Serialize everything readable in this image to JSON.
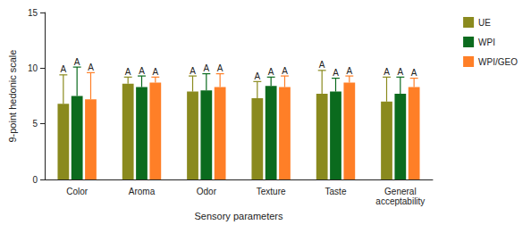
{
  "chart_data": {
    "type": "bar",
    "x_label": "Sensory parameters",
    "y_label": "9-point hedonic scale",
    "categories": [
      "Color",
      "Aroma",
      "Odor",
      "Texture",
      "Taste",
      "General\nacceptability"
    ],
    "series": [
      {
        "name": "UE",
        "color": "#8a8a1e",
        "values": [
          6.8,
          8.6,
          7.9,
          7.3,
          7.7,
          7.0
        ],
        "error": [
          2.6,
          0.6,
          1.4,
          1.5,
          2.1,
          2.2
        ],
        "letters": [
          "A",
          "A",
          "A",
          "A",
          "A",
          "A"
        ]
      },
      {
        "name": "WPI",
        "color": "#0b6b1e",
        "values": [
          7.5,
          8.3,
          8.0,
          8.4,
          7.9,
          7.7
        ],
        "error": [
          2.6,
          1.0,
          1.5,
          0.8,
          1.2,
          1.5
        ],
        "letters": [
          "A",
          "A",
          "A",
          "A",
          "A",
          "A"
        ]
      },
      {
        "name": "WPI/GEO",
        "color": "#ff7f27",
        "values": [
          7.2,
          8.7,
          8.3,
          8.3,
          8.7,
          8.3
        ],
        "error": [
          2.4,
          0.5,
          1.2,
          1.0,
          0.6,
          0.8
        ],
        "letters": [
          "A",
          "A",
          "A",
          "A",
          "A",
          "A"
        ]
      }
    ],
    "ylim": [
      0,
      15
    ],
    "yticks": [
      0,
      5,
      10,
      15
    ],
    "grid": false,
    "legend": "top-right"
  }
}
